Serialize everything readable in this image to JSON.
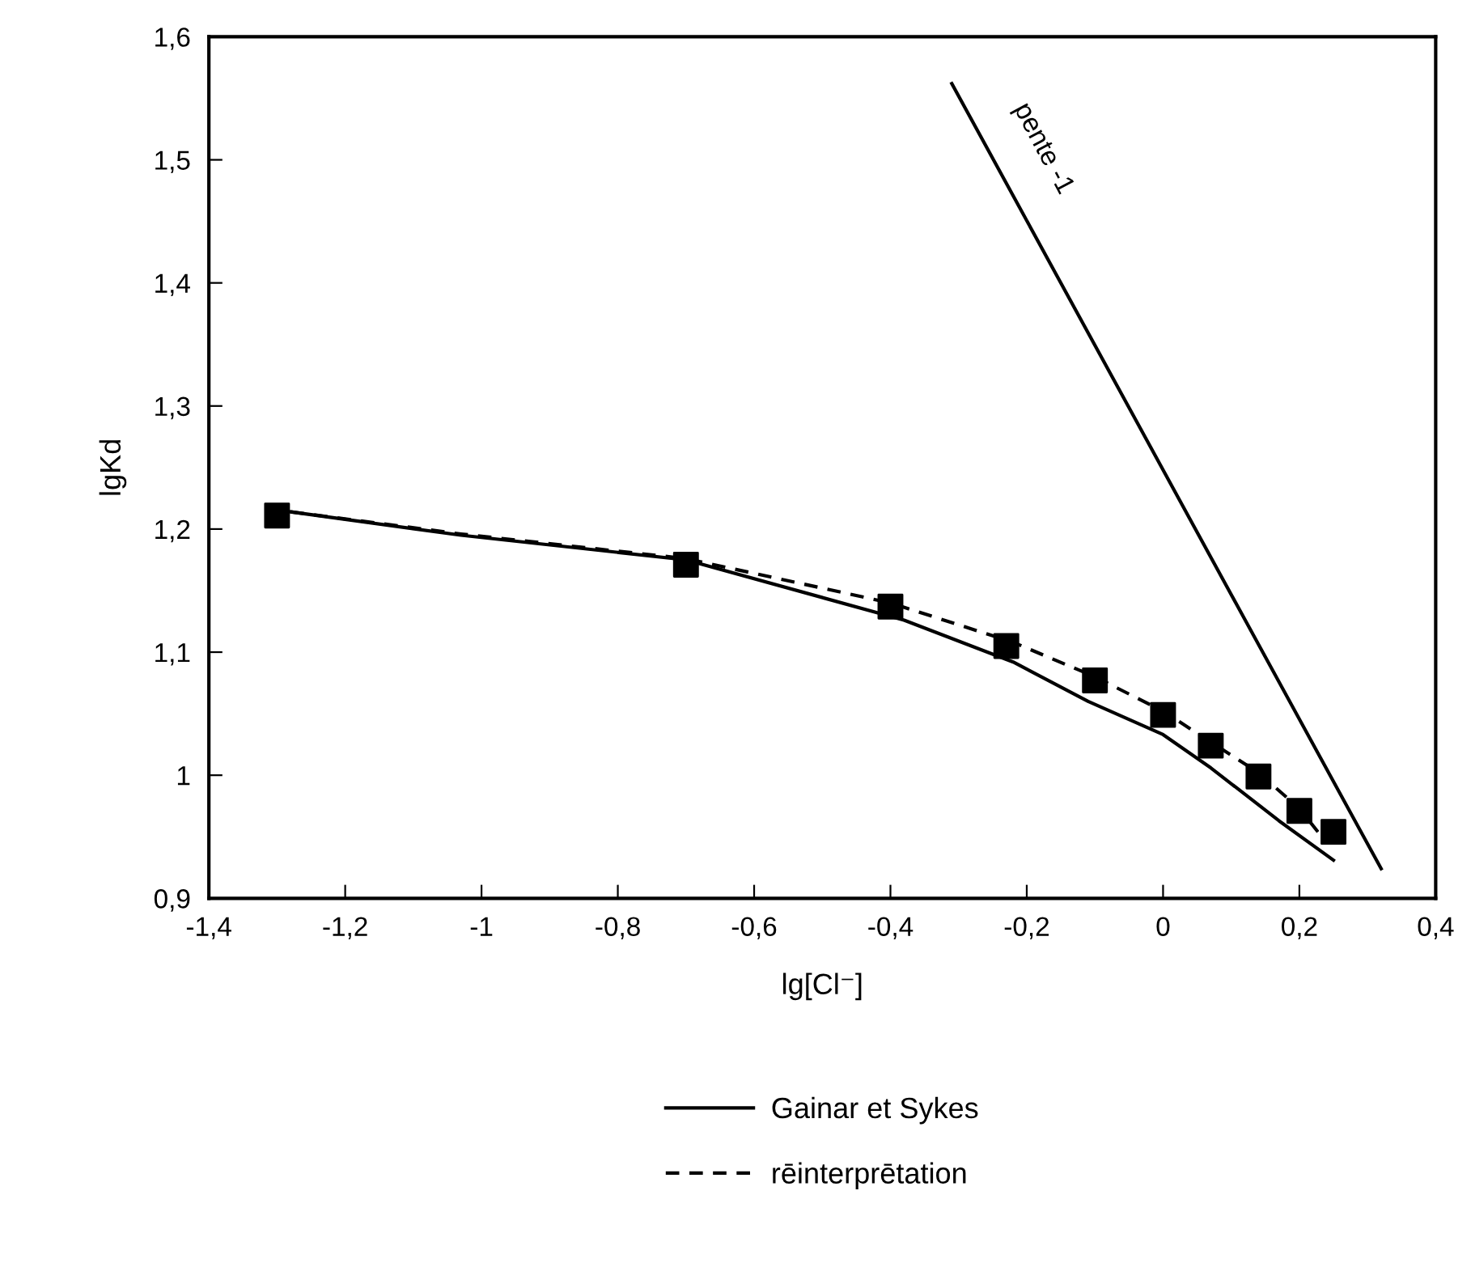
{
  "chart_data": {
    "type": "line",
    "xlabel": "lg[Cl⁻]",
    "ylabel": "lgKd",
    "legend": "bottom",
    "grid": false,
    "xlim": [
      -1.4,
      0.4
    ],
    "ylim": [
      0.9,
      1.6
    ],
    "xticks": [
      {
        "value": -1.4,
        "label": "-1,4"
      },
      {
        "value": -1.2,
        "label": "-1,2"
      },
      {
        "value": -1,
        "label": "-1"
      },
      {
        "value": -0.8,
        "label": "-0,8"
      },
      {
        "value": -0.6,
        "label": "-0,6"
      },
      {
        "value": -0.4,
        "label": "-0,4"
      },
      {
        "value": -0.2,
        "label": "-0,2"
      },
      0,
      {
        "value": 0.2,
        "label": "0,2"
      },
      {
        "value": 0.4,
        "label": "0,4"
      }
    ],
    "yticks": [
      {
        "value": 0.9,
        "label": "0,9"
      },
      1,
      {
        "value": 1.1,
        "label": "1,1"
      },
      {
        "value": 1.2,
        "label": "1,2"
      },
      {
        "value": 1.3,
        "label": "1,3"
      },
      {
        "value": 1.4,
        "label": "1,4"
      },
      {
        "value": 1.5,
        "label": "1,5"
      },
      {
        "value": 1.6,
        "label": "1,6"
      }
    ],
    "series": [
      {
        "type": "scatter",
        "marker": "square",
        "color": "#000000",
        "x": [
          -1.3,
          -0.7,
          -0.4,
          -0.23,
          -0.1,
          0,
          0.07,
          0.14,
          0.2,
          0.25
        ],
        "values": [
          1.211,
          1.171,
          1.137,
          1.105,
          1.077,
          1.049,
          1.024,
          0.999,
          0.971,
          0.954
        ]
      },
      {
        "name": "Gainar et Sykes",
        "line_style": "solid",
        "color": "#000000",
        "x": [
          -1.28,
          -1.03,
          -0.7,
          -0.38,
          -0.22,
          -0.11,
          0,
          0.07,
          0.17,
          0.25
        ],
        "values": [
          1.214,
          1.195,
          1.175,
          1.126,
          1.092,
          1.06,
          1.033,
          1.006,
          0.963,
          0.931
        ]
      },
      {
        "name": "rēinterprētation",
        "line_style": "dashed",
        "color": "#000000",
        "x": [
          -1.28,
          -1.03,
          -0.7,
          -0.4,
          -0.22,
          -0.1,
          0,
          0.07,
          0.14,
          0.2,
          0.24
        ],
        "values": [
          1.214,
          1.196,
          1.176,
          1.14,
          1.108,
          1.08,
          1.052,
          1.027,
          1.002,
          0.973,
          0.945
        ]
      },
      {
        "line_style": "solid",
        "color": "#000000",
        "x": [
          -0.31,
          0.32
        ],
        "values": [
          1.562,
          0.924
        ]
      }
    ],
    "annotations": [
      "pente -1"
    ]
  }
}
